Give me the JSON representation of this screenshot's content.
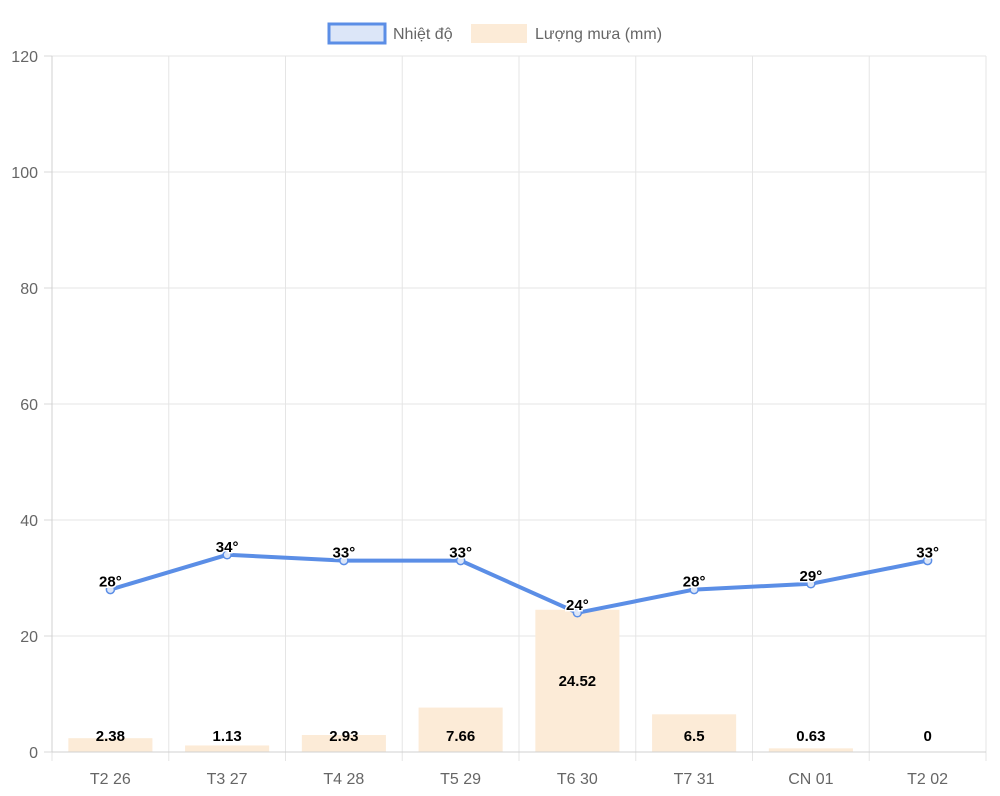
{
  "chart_data": {
    "type": "bar",
    "categories": [
      "T2 26",
      "T3 27",
      "T4 28",
      "T5 29",
      "T6 30",
      "T7 31",
      "CN 01",
      "T2 02"
    ],
    "series": [
      {
        "name": "Nhiệt độ",
        "type": "line",
        "values": [
          28,
          34,
          33,
          33,
          24,
          28,
          29,
          33
        ],
        "labels": [
          "28°",
          "34°",
          "33°",
          "33°",
          "24°",
          "28°",
          "29°",
          "33°"
        ],
        "color": "#5b8ee6",
        "fill": "#dce6f8"
      },
      {
        "name": "Lượng mưa (mm)",
        "type": "bar",
        "values": [
          2.38,
          1.13,
          2.93,
          7.66,
          24.52,
          6.5,
          0.63,
          0
        ],
        "labels": [
          "2.38",
          "1.13",
          "2.93",
          "7.66",
          "24.52",
          "6.5",
          "0.63",
          "0"
        ],
        "color": "#fcebd7"
      }
    ],
    "y_ticks": [
      "0",
      "20",
      "40",
      "60",
      "80",
      "100",
      "120"
    ],
    "ylim": [
      0,
      120
    ],
    "grid": true,
    "legend": "top-center"
  }
}
